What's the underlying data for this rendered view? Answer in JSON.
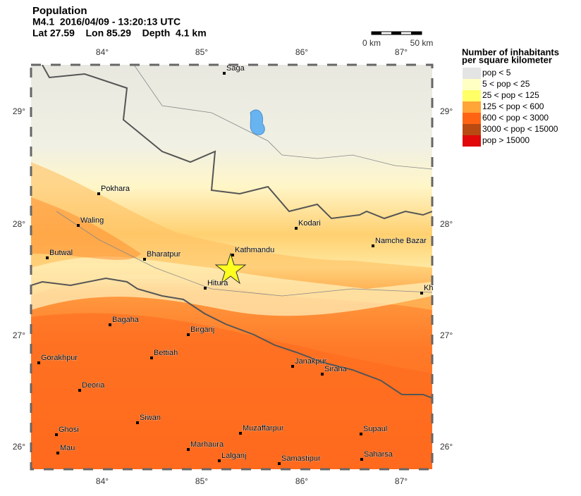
{
  "header": {
    "title": "Population",
    "line1": "M4.1  2016/04/09 - 13:20:13 UTC",
    "line2": "Lat 27.59    Lon 85.29    Depth  4.1 km"
  },
  "scale": {
    "labels": [
      "0 km",
      "50 km"
    ]
  },
  "axes": {
    "lon_labels": [
      "84°",
      "85°",
      "86°",
      "87°"
    ],
    "lat_labels": [
      "29°",
      "28°",
      "27°",
      "26°"
    ]
  },
  "cities": [
    "Saga",
    "Pokhara",
    "Waling",
    "Butwal",
    "Bharatpur",
    "Kathmandu",
    "Hitura",
    "Kodari",
    "Namche Bazar",
    "Kh",
    "Bagaha",
    "Birganj",
    "Bettiah",
    "Gorakhpur",
    "Janakpur",
    "Siraha",
    "Deoria",
    "Siwan",
    "Muzaffarpur",
    "Supaul",
    "Ghosi",
    "Mau",
    "Marhaura",
    "Lalganj",
    "Samastipur",
    "Saharsa"
  ],
  "legend": {
    "title": [
      "Number of inhabitants",
      "per square kilometer"
    ],
    "entries": [
      {
        "label": "pop < 5",
        "color": "#e4e4e4"
      },
      {
        "label": "5 < pop < 25",
        "color": "#ffffc4"
      },
      {
        "label": "25 < pop < 125",
        "color": "#ffff66"
      },
      {
        "label": "125 < pop < 600",
        "color": "#ffa436"
      },
      {
        "label": "600 < pop < 3000",
        "color": "#ff6414"
      },
      {
        "label": "3000 < pop < 15000",
        "color": "#b84a12"
      },
      {
        "label": "pop > 15000",
        "color": "#e00808"
      }
    ]
  }
}
